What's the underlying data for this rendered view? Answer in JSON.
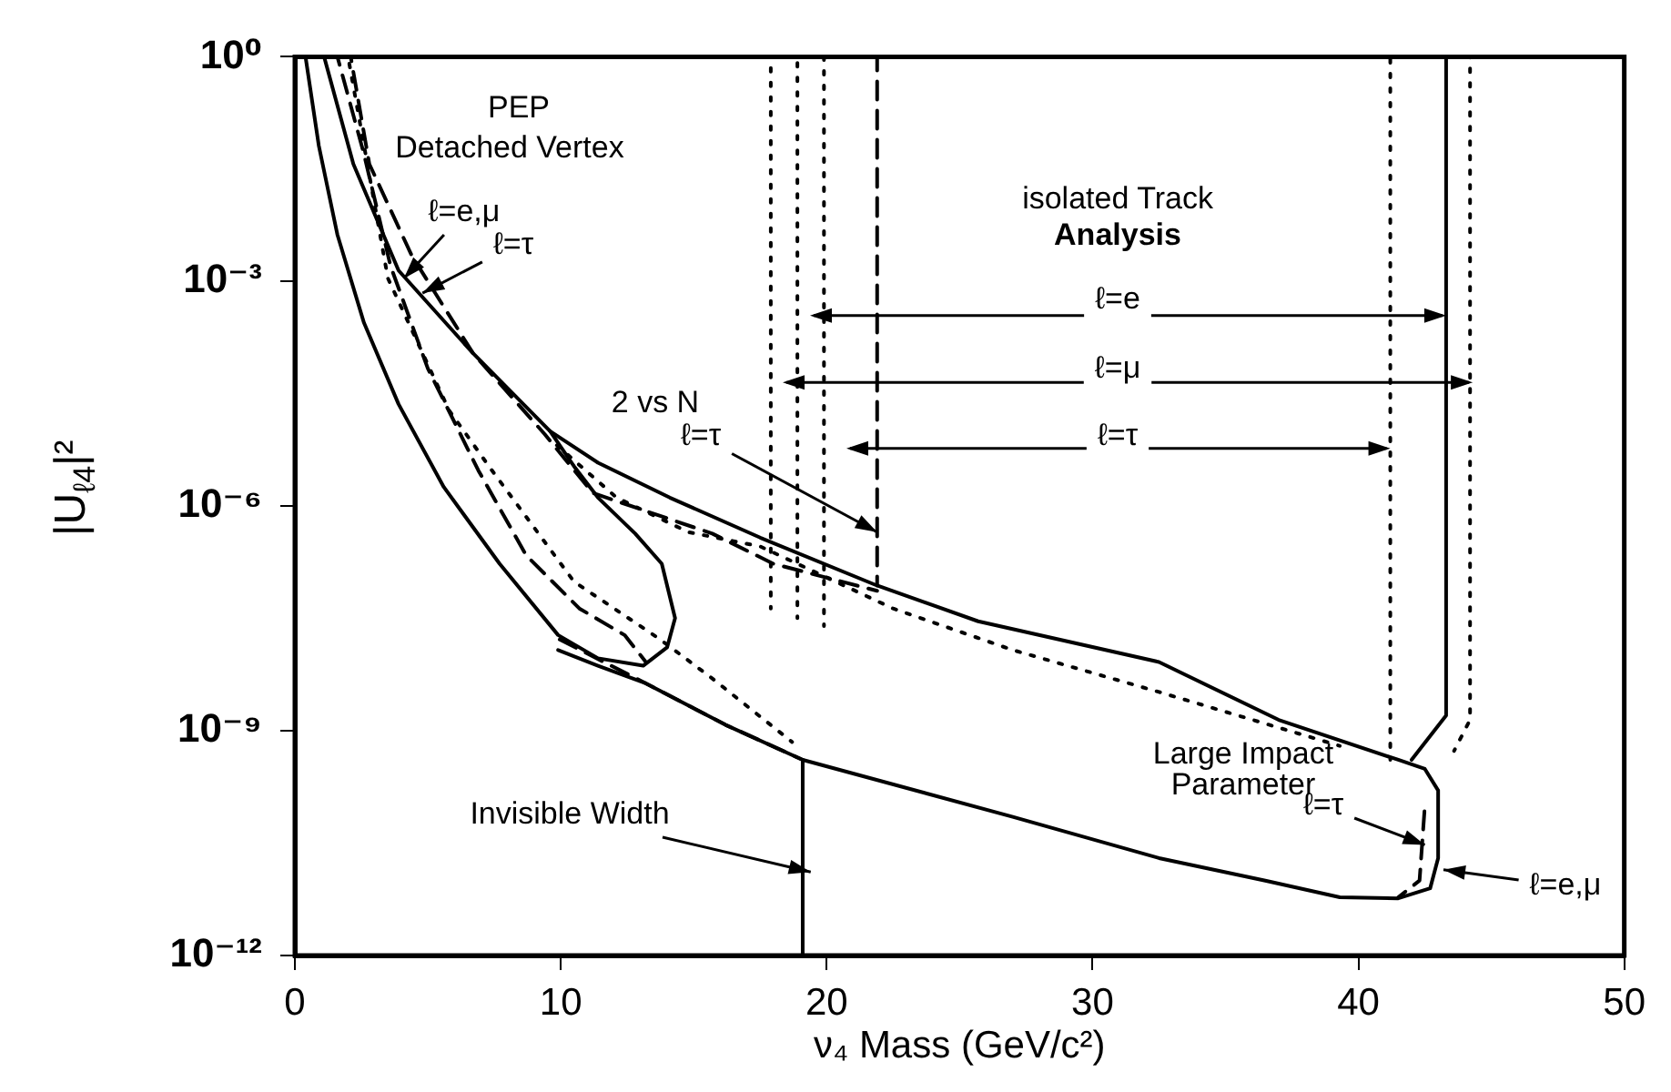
{
  "chart_data": {
    "type": "line",
    "xlabel": "ν₄ Mass (GeV/c²)",
    "ylabel": "|U$_{ℓ4}$|²",
    "log": true,
    "grid": false,
    "marker": "none",
    "xlim": [
      0,
      50
    ],
    "xticks": [
      0,
      10,
      20,
      30,
      40,
      50
    ],
    "ylim": [
      1e-12,
      1
    ],
    "yticks": [
      {
        "value": 1e-12,
        "label": "10⁻¹²"
      },
      {
        "value": 1e-09,
        "label": "10⁻⁹"
      },
      {
        "value": 1e-06,
        "label": "10⁻⁶"
      },
      {
        "value": 0.001,
        "label": "10⁻³"
      },
      {
        "value": 1,
        "label": "10⁰"
      }
    ],
    "series": [
      {
        "color": "#000000",
        "line_style": "solid",
        "x": [
          0.4,
          0.9,
          1.6,
          2.6,
          3.9,
          5.6,
          7.7,
          9.9,
          11.4,
          13.1,
          14.0,
          14.3,
          13.8,
          12.8,
          11.4,
          10.5,
          9.6,
          6.7,
          3.9,
          2.2,
          1.1
        ],
        "values": [
          1,
          0.065,
          0.0042,
          0.00028,
          2.3e-05,
          1.8e-06,
          1.7e-07,
          1.9e-08,
          9.3e-09,
          7.4e-09,
          1.3e-08,
          3.2e-08,
          1.7e-07,
          4.3e-07,
          1.3e-06,
          3.4e-06,
          1e-05,
          0.00011,
          0.0014,
          0.037,
          1
        ]
      },
      {
        "color": "#000000",
        "line_style": "solid",
        "x": [
          9.6,
          11.4,
          14.1,
          17.5,
          21.9,
          25.7,
          32.5,
          37.0,
          41.5,
          42.5,
          43.0,
          43.0,
          42.7,
          41.5,
          39.3,
          36.5,
          32.5,
          27.0,
          19.1,
          16.2,
          13.2,
          11.4,
          9.9
        ],
        "values": [
          1e-05,
          3.8e-06,
          1.3e-06,
          3.8e-07,
          8.7e-08,
          2.9e-08,
          8.3e-09,
          1.4e-09,
          4.1e-10,
          3.1e-10,
          1.6e-10,
          2e-11,
          7.9e-12,
          5.8e-12,
          6e-12,
          1e-11,
          2e-11,
          7.1e-11,
          4.1e-10,
          1.2e-09,
          4.3e-09,
          7.4e-09,
          1.2e-08
        ]
      },
      {
        "color": "#000000",
        "line_style": "dashed",
        "x": [
          1.6,
          2.6,
          3.6,
          5.0,
          6.9,
          8.7,
          10.7,
          12.4,
          13.2
        ],
        "values": [
          1,
          0.05,
          0.0016,
          6.9e-05,
          3e-06,
          2.2e-07,
          4.3e-08,
          1.9e-08,
          8.3e-09
        ]
      },
      {
        "color": "#000000",
        "line_style": "dashed",
        "x": [
          9.9,
          13.2,
          16.2,
          19.1
        ],
        "values": [
          1.7e-08,
          4.3e-09,
          1.2e-09,
          4.1e-10
        ]
      },
      {
        "color": "#000000",
        "line_style": "dashed",
        "x": [
          2.1,
          2.8,
          4.4,
          6.7,
          9.4,
          11.2,
          15.7,
          18.0,
          21.9
        ],
        "values": [
          1,
          0.037,
          0.0022,
          0.00011,
          9.1e-06,
          1.5e-06,
          4.3e-07,
          1.7e-07,
          7.4e-08
        ]
      },
      {
        "color": "#000000",
        "line_style": "dashed",
        "x": [
          42.5,
          42.3,
          41.5
        ],
        "values": [
          1e-10,
          1e-11,
          6e-12
        ]
      },
      {
        "color": "#000000",
        "line_style": "dotted",
        "x": [
          2.0,
          3.5,
          5.8,
          7.3,
          10.5,
          13.7,
          15.7,
          18.7
        ],
        "values": [
          1,
          0.0011,
          1.9e-05,
          3.4e-06,
          9.8e-08,
          1.7e-08,
          5e-09,
          7.1e-10
        ]
      },
      {
        "color": "#000000",
        "line_style": "dotted",
        "x": [
          9.6,
          12.1,
          14.8,
          17.5,
          22.5,
          27.0,
          32.5,
          39.3
        ],
        "values": [
          7.8e-06,
          1.3e-06,
          4.5e-07,
          2.9e-07,
          4.3e-08,
          1.2e-08,
          3.3e-09,
          6.3e-10
        ]
      },
      {
        "color": "#000000",
        "line_style": "dotted",
        "x": [
          17.9,
          17.9
        ],
        "values": [
          1,
          4.3e-08
        ]
      },
      {
        "color": "#000000",
        "line_style": "dotted",
        "x": [
          18.9,
          18.9
        ],
        "values": [
          1,
          3.2e-08
        ]
      },
      {
        "color": "#000000",
        "line_style": "dotted",
        "x": [
          19.9,
          19.9
        ],
        "values": [
          1,
          2.5e-08
        ]
      },
      {
        "color": "#000000",
        "line_style": "dashed",
        "x": [
          21.9,
          21.9
        ],
        "values": [
          1,
          8.7e-08
        ]
      },
      {
        "color": "#000000",
        "line_style": "dotted",
        "x": [
          41.2,
          41.2
        ],
        "values": [
          1,
          4.1e-10
        ]
      },
      {
        "color": "#000000",
        "line_style": "solid",
        "x": [
          43.3,
          43.3,
          42.0
        ],
        "values": [
          1,
          1.6e-09,
          4.1e-10
        ]
      },
      {
        "color": "#000000",
        "line_style": "dotted",
        "x": [
          44.2,
          44.2,
          43.6
        ],
        "values": [
          1,
          1.4e-09,
          5.4e-10
        ]
      },
      {
        "color": "#000000",
        "line_style": "solid",
        "x": [
          19.1,
          19.1
        ],
        "values": [
          4.1e-10,
          1e-12
        ]
      }
    ],
    "annotations": [
      "PEP",
      "Detached Vertex",
      {
        "text": "ℓ=e,μ",
        "x": 4.1,
        "y": 0.0011
      },
      {
        "text": "ℓ=τ",
        "x": 4.8,
        "y": 0.0007
      },
      "2 vs N",
      {
        "text": "ℓ=τ",
        "x": 21.9,
        "y": 4.5e-07
      },
      "isolated Track",
      "Analysis",
      {
        "text": "ℓ=e",
        "x": 43.3,
        "y": 0.00035
      },
      {
        "text": "ℓ=μ",
        "x": 44.3,
        "y": 4.5e-05
      },
      {
        "text": "ℓ=τ",
        "x": 41.2,
        "y": 5.9e-06
      },
      "Large Impact",
      "Parameter",
      {
        "text": "ℓ=τ",
        "x": 42.5,
        "y": 3e-11
      },
      {
        "text": "ℓ=e,μ",
        "x": 43.2,
        "y": 1.4e-11
      },
      {
        "text": "Invisible Width",
        "x": 19.4,
        "y": 1.3e-11
      }
    ]
  }
}
